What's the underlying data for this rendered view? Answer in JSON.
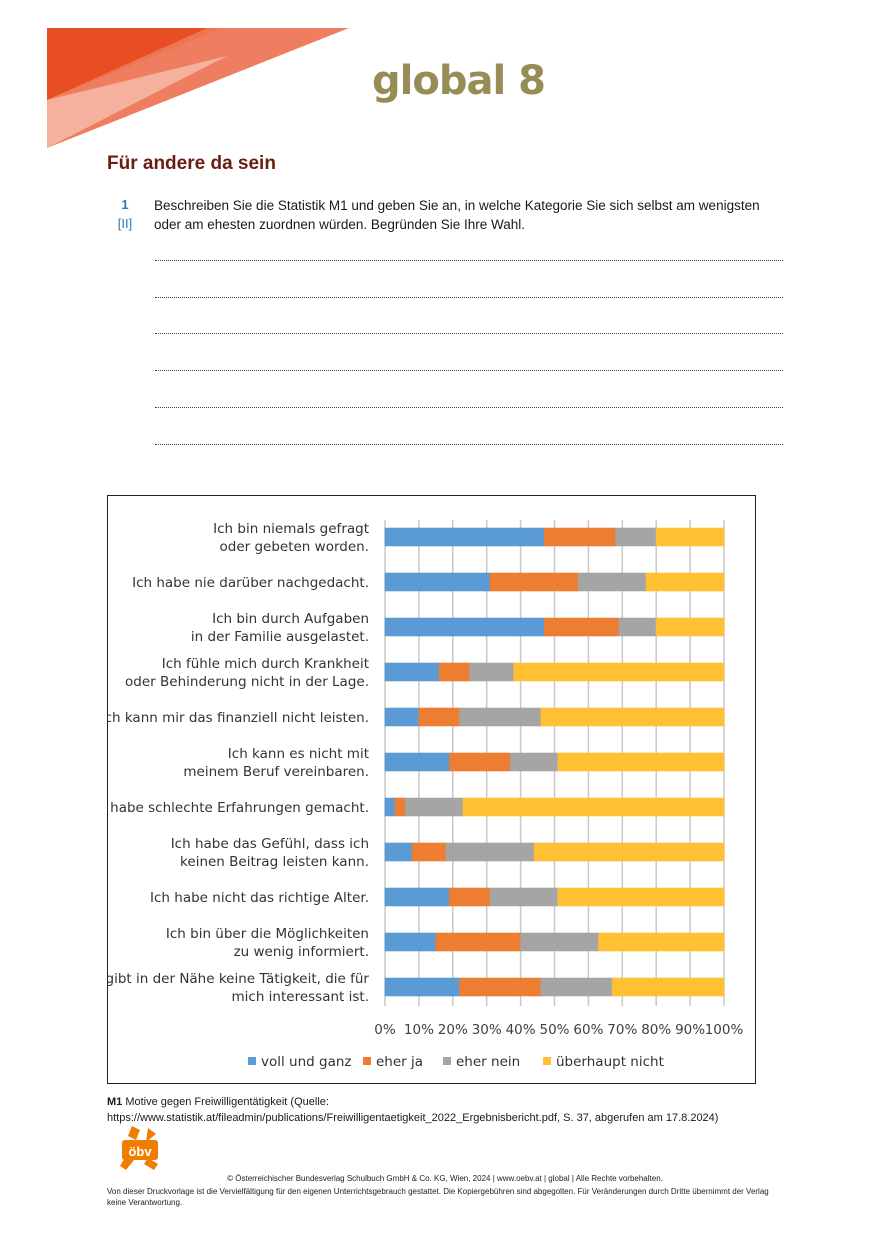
{
  "header": {
    "brand": "global 8",
    "logo_colors": [
      "#e84e24",
      "#ee7656",
      "#f6b7a5"
    ]
  },
  "heading": "Für andere da sein",
  "task": {
    "number": "1",
    "level": "[II]",
    "text": "Beschreiben Sie die Statistik M1 und geben Sie an, in welche Kategorie Sie sich selbst am wenigsten oder am ehesten zuordnen würden. Begründen Sie Ihre Wahl.",
    "answer_lines": 6
  },
  "chart_data": {
    "type": "bar",
    "orientation": "horizontal",
    "stacked": "100%",
    "categories": [
      [
        "Ich bin niemals gefragt",
        "oder gebeten worden."
      ],
      [
        "Ich habe nie darüber nachgedacht."
      ],
      [
        "Ich bin durch Aufgaben",
        "in der Familie ausgelastet."
      ],
      [
        "Ich fühle mich durch Krankheit",
        "oder Behinderung nicht in der Lage."
      ],
      [
        "Ich kann mir das finanziell nicht leisten."
      ],
      [
        "Ich kann es nicht mit",
        "meinem Beruf vereinbaren."
      ],
      [
        "Ich habe schlechte Erfahrungen gemacht."
      ],
      [
        "Ich habe das Gefühl, dass ich",
        "keinen Beitrag leisten kann."
      ],
      [
        "Ich habe nicht das richtige Alter."
      ],
      [
        "Ich bin über die Möglichkeiten",
        "zu wenig informiert."
      ],
      [
        "Es gibt in der Nähe keine Tätigkeit, die für",
        "mich interessant ist."
      ]
    ],
    "series": [
      {
        "name": "voll und ganz",
        "color": "#5b9bd5",
        "values": [
          47,
          31,
          47,
          16,
          10,
          19,
          3,
          8,
          19,
          15,
          22
        ]
      },
      {
        "name": "eher ja",
        "color": "#ed7d31",
        "values": [
          21,
          26,
          22,
          9,
          12,
          18,
          3,
          10,
          12,
          25,
          24
        ]
      },
      {
        "name": "eher nein",
        "color": "#a5a5a5",
        "values": [
          12,
          20,
          11,
          13,
          24,
          14,
          17,
          26,
          20,
          23,
          21
        ]
      },
      {
        "name": "überhaupt nicht",
        "color": "#ffc033",
        "values": [
          20,
          23,
          20,
          62,
          54,
          49,
          77,
          56,
          49,
          37,
          33
        ]
      }
    ],
    "xlim": [
      0,
      100
    ],
    "xticks": [
      "0%",
      "10%",
      "20%",
      "30%",
      "40%",
      "50%",
      "60%",
      "70%",
      "80%",
      "90%",
      "100%"
    ],
    "grid": true,
    "legend": "bottom"
  },
  "caption": {
    "label": "M1",
    "text": " Motive gegen Freiwilligentätigkeit (Quelle:",
    "source": "https://www.statistik.at/fileadmin/publications/Freiwilligentaetigkeit_2022_Ergebnisbericht.pdf, S. 37, abgerufen am 17.8.2024)"
  },
  "footer": {
    "logo": "öbv",
    "logo_color": "#ef7d00",
    "copyright": "© Österreichischer Bundesverlag Schulbuch GmbH & Co. KG, Wien, 2024 | www.oebv.at | global | Alle Rechte vorbehalten.",
    "disclaimer": "Von dieser Druckvorlage ist die Vervielfältigung für den eigenen Unterrichtsgebrauch gestattet. Die Kopiergebühren sind abgegolten. Für Veränderungen durch Dritte übernimmt der Verlag keine Verantwortung."
  }
}
